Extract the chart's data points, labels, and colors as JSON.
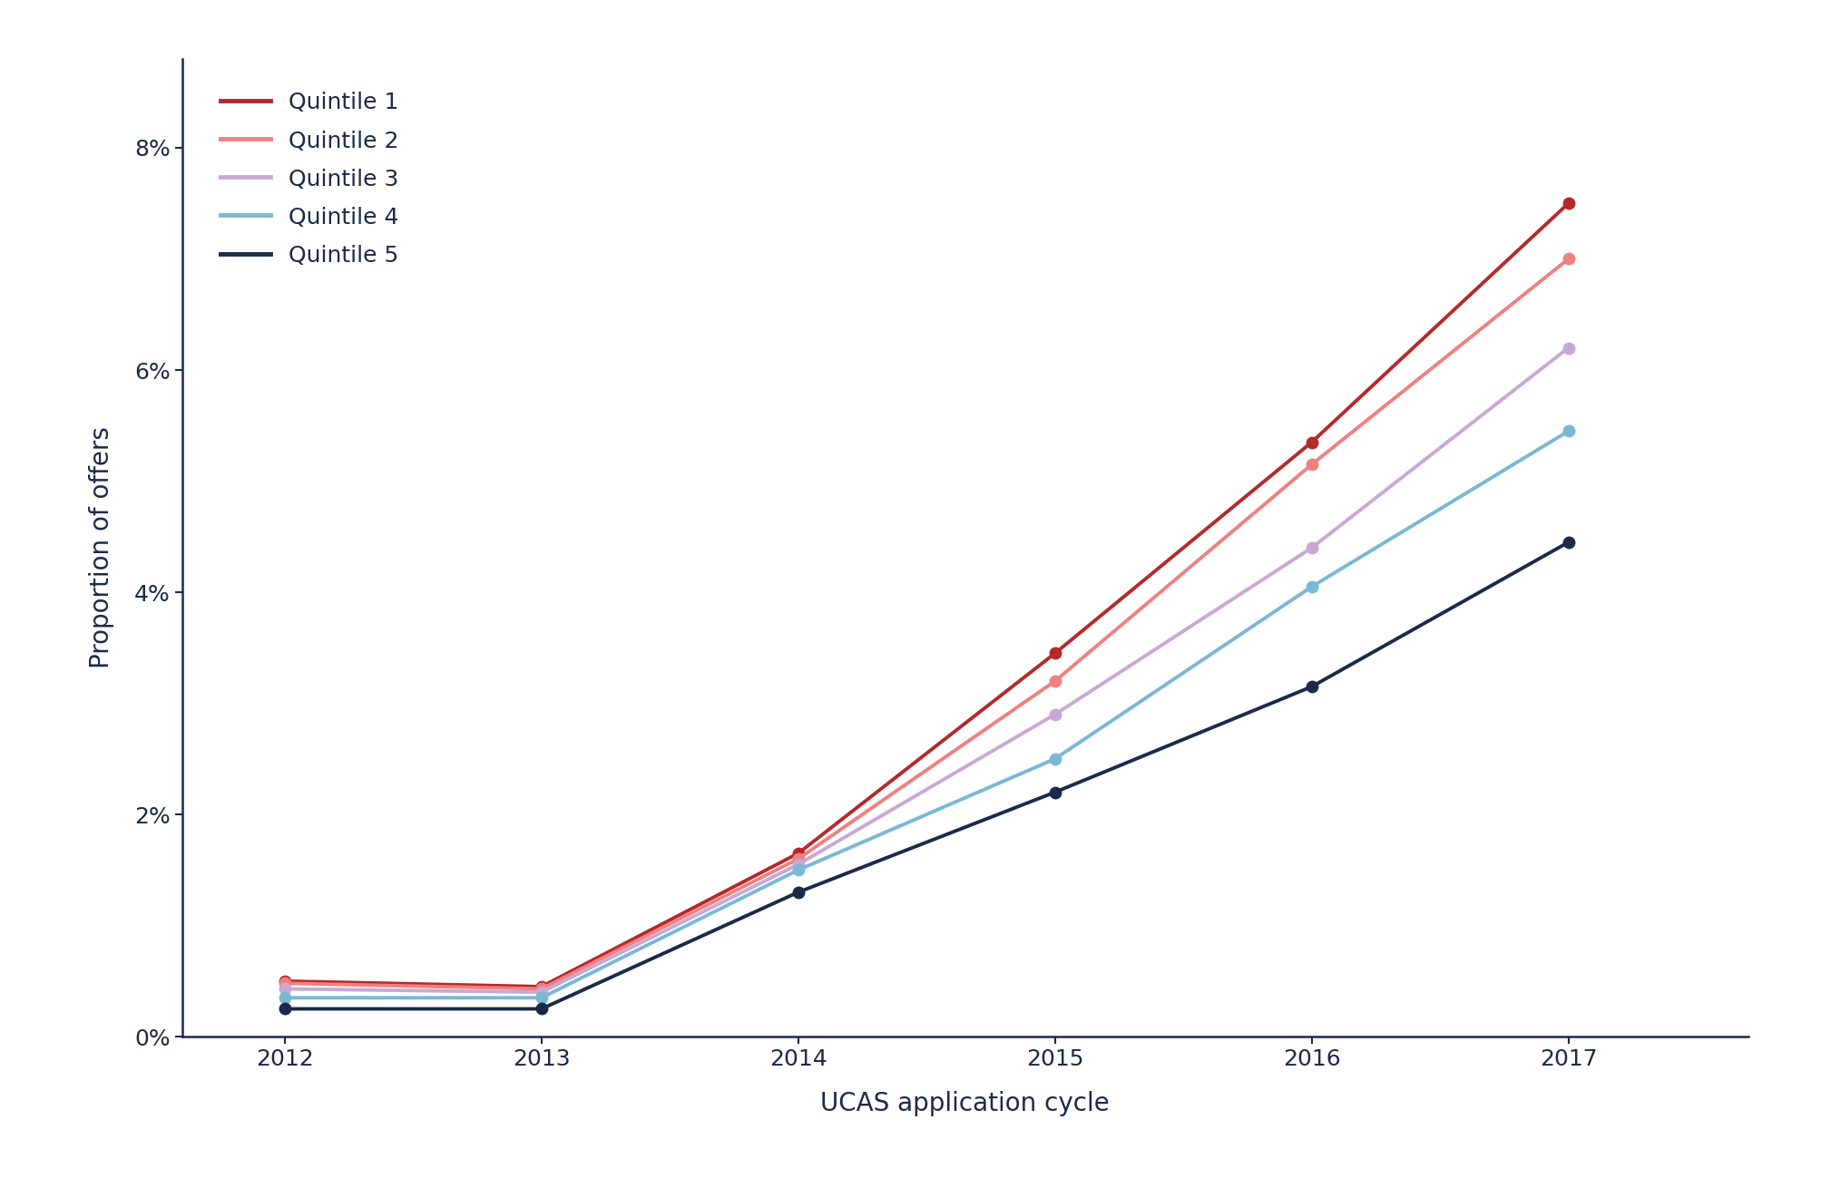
{
  "years": [
    2012,
    2013,
    2014,
    2015,
    2016,
    2017
  ],
  "series": [
    {
      "label": "Quintile 1",
      "color": "#b5292a",
      "values": [
        0.005,
        0.0045,
        0.0165,
        0.0345,
        0.0535,
        0.075
      ]
    },
    {
      "label": "Quintile 2",
      "color": "#f08080",
      "values": [
        0.0048,
        0.0043,
        0.016,
        0.032,
        0.0515,
        0.07
      ]
    },
    {
      "label": "Quintile 3",
      "color": "#c9a8d4",
      "values": [
        0.0043,
        0.004,
        0.0155,
        0.029,
        0.044,
        0.062
      ]
    },
    {
      "label": "Quintile 4",
      "color": "#7ab8d4",
      "values": [
        0.0035,
        0.0035,
        0.015,
        0.025,
        0.0405,
        0.0545
      ]
    },
    {
      "label": "Quintile 5",
      "color": "#1b2a4a",
      "values": [
        0.0025,
        0.0025,
        0.013,
        0.022,
        0.0315,
        0.0445
      ]
    }
  ],
  "xlabel": "UCAS application cycle",
  "ylabel": "Proportion of offers",
  "ylim": [
    0,
    0.088
  ],
  "yticks": [
    0.0,
    0.02,
    0.04,
    0.06,
    0.08
  ],
  "ytick_labels": [
    "0%",
    "2%",
    "4%",
    "6%",
    "8%"
  ],
  "background_color": "#ffffff",
  "axis_color": "#1b2a4a",
  "linewidth": 2.8,
  "markersize": 9,
  "marker": "o",
  "label_fontsize": 20,
  "tick_fontsize": 18,
  "legend_fontsize": 18
}
